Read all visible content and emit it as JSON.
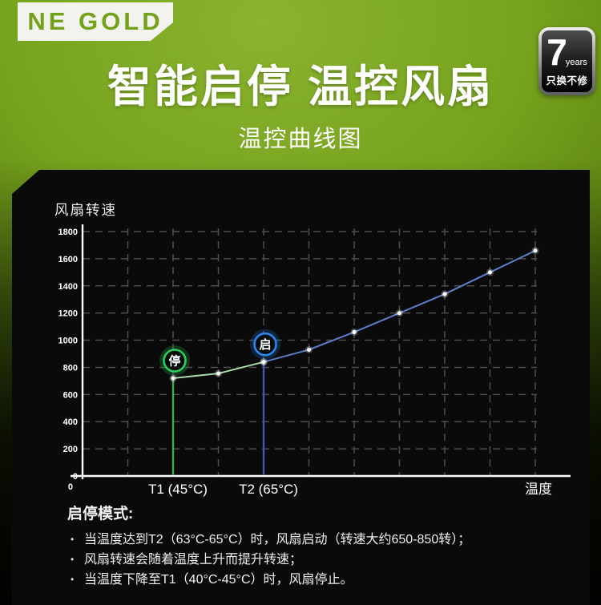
{
  "header": {
    "brand": "NE GOLD",
    "title": "智能启停 温控风扇",
    "subtitle": "温控曲线图",
    "warranty": {
      "number": "7",
      "unit": "years",
      "slogan": "只换不修"
    }
  },
  "colors": {
    "brand_green": "#74a11c",
    "panel_bg": "#0a0a0a",
    "stop_green": "#2ecc5e",
    "start_blue": "#2b86f0",
    "stop_segment_line": "#a8dcaa",
    "run_segment_line": "#5d7ecb"
  },
  "chart_data": {
    "type": "line",
    "title": "温控曲线图",
    "ylabel": "风扇转速",
    "xlabel": "温度",
    "ylim": [
      0,
      1800
    ],
    "y_ticks": [
      0,
      200,
      400,
      600,
      800,
      1000,
      1200,
      1400,
      1600,
      1800
    ],
    "x_gridline_count": 10,
    "origin_label": "0",
    "x_ticks": [
      {
        "index": 2,
        "label": "T1 (45°C)"
      },
      {
        "index": 4,
        "label": "T2 (65°C)"
      }
    ],
    "grid": true,
    "legend": false,
    "series": [
      {
        "name": "stop-segment",
        "color": "#a8dcaa",
        "x_indices": [
          2,
          3,
          4
        ],
        "values": [
          720,
          755,
          840
        ]
      },
      {
        "name": "run-segment",
        "color": "#5d7ecb",
        "x_indices": [
          4,
          5,
          6,
          7,
          8,
          9,
          10
        ],
        "values": [
          840,
          930,
          1060,
          1200,
          1340,
          1500,
          1660
        ]
      }
    ],
    "drop_lines": [
      {
        "x_index": 2,
        "value": 720,
        "color": "#3fae52"
      },
      {
        "x_index": 4,
        "value": 840,
        "color": "#3b5cad"
      }
    ],
    "markers": [
      {
        "label": "停",
        "x_index": 2,
        "value": 720,
        "color": "#2ecc5e"
      },
      {
        "label": "启",
        "x_index": 4,
        "value": 840,
        "color": "#2b86f0"
      }
    ]
  },
  "notes": {
    "heading": "启停模式:",
    "items": [
      "当温度达到T2（63°C-65°C）时，风扇启动（转速大约650-850转）；",
      "风扇转速会随着温度上升而提升转速；",
      "当温度下降至T1（40°C-45°C）时，风扇停止。"
    ]
  }
}
